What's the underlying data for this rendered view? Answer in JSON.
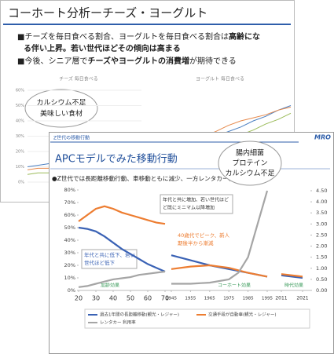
{
  "back_slide": {
    "title": "コーホート分析ーチーズ・ヨーグルト",
    "bullets": [
      [
        {
          "text": "■チーズを毎日食べる割合、ヨーグルトを毎日食べる割合は",
          "bold": false
        },
        {
          "text": "高齢にな",
          "bold": true
        }
      ],
      [
        {
          "text": "る伴い上昇。若い世代ほどその傾向は高まる",
          "bold": true
        }
      ],
      [
        {
          "text": "■今後、シニア層で",
          "bold": false
        },
        {
          "text": "チーズやヨーグルトの消費増",
          "bold": true
        },
        {
          "text": "が期待できる",
          "bold": false
        }
      ]
    ],
    "charts": [
      {
        "title": "チーズ 毎日食べる",
        "ylim": [
          0,
          60
        ],
        "yticks": [
          {
            "value": 60,
            "label": "60%"
          },
          {
            "value": 50,
            "label": "50%"
          },
          {
            "value": 40,
            "label": "40%"
          },
          {
            "value": 30,
            "label": "30%"
          },
          {
            "value": 20,
            "label": "20%"
          },
          {
            "value": 10,
            "label": "10%"
          },
          {
            "value": 0,
            "label": "0%"
          }
        ],
        "series": [
          {
            "color": "#4a7fc1",
            "values": [
              10,
              11,
              12,
              13,
              14,
              15,
              17,
              19,
              21,
              23,
              25,
              28
            ]
          },
          {
            "color": "#e6884a",
            "values": [
              8,
              9,
              9,
              10,
              11,
              12,
              13,
              14,
              16,
              17,
              19,
              21
            ]
          },
          {
            "color": "#9bbb59",
            "values": [
              5,
              6,
              6,
              7,
              8,
              8,
              9,
              10,
              11,
              12,
              13,
              14
            ]
          }
        ]
      },
      {
        "title": "ヨーグルト 毎日食べる",
        "ylim": [
          0,
          60
        ],
        "series": [
          {
            "color": "#4a7fc1",
            "values": [
              15,
              18,
              20,
              24,
              27,
              30,
              33,
              36,
              40,
              43,
              47,
              50
            ]
          },
          {
            "color": "#9bbb59",
            "values": [
              12,
              14,
              17,
              19,
              22,
              25,
              28,
              31,
              34,
              38,
              41,
              45
            ]
          },
          {
            "color": "#e6884a",
            "values": [
              20,
              22,
              24,
              27,
              30,
              33,
              37,
              40,
              42,
              44,
              47,
              49
            ]
          }
        ]
      }
    ],
    "callouts": [
      [
        "カルシウム不足",
        "美味しい食材"
      ],
      [
        "腸内細菌",
        "プロテイン",
        "カルシウム不足"
      ]
    ]
  },
  "front_slide": {
    "header": "Z世代の移動行動",
    "logo": "MRO",
    "title": "APCモデルでみた移動行動",
    "bullet": "●Z世代では長距離移動行動、車移動ともに減少、一方レンタカー利用は急増",
    "chart_data": {
      "type": "line",
      "ylim": [
        0,
        80
      ],
      "yticks": [
        {
          "value": 80,
          "label": "80%"
        },
        {
          "value": 70,
          "label": "70%"
        },
        {
          "value": 60,
          "label": "60%"
        },
        {
          "value": 50,
          "label": "50%"
        },
        {
          "value": 40,
          "label": "40%"
        },
        {
          "value": 30,
          "label": "30%"
        },
        {
          "value": 20,
          "label": "20%"
        },
        {
          "value": 10,
          "label": "10%"
        },
        {
          "value": 0,
          "label": "0%"
        }
      ],
      "y2lim": [
        0,
        4.5
      ],
      "y2ticks": [
        {
          "value": 4.5,
          "label": "4.50"
        },
        {
          "value": 4,
          "label": "4.00"
        },
        {
          "value": 3.5,
          "label": "3.50"
        },
        {
          "value": 3,
          "label": "3.00"
        },
        {
          "value": 2.5,
          "label": "2.50"
        },
        {
          "value": 2,
          "label": "2.00"
        },
        {
          "value": 1.5,
          "label": "1.50"
        },
        {
          "value": 1,
          "label": "1.00"
        },
        {
          "value": 0.5,
          "label": "0.50"
        },
        {
          "value": 0,
          "label": "0.00"
        }
      ],
      "panels": [
        {
          "xlim": [
            20,
            70
          ],
          "xticks": [
            20,
            30,
            40,
            50,
            60,
            70
          ],
          "series": [
            {
              "color": "#3a62b5",
              "x": [
                20,
                25,
                30,
                35,
                40,
                45,
                50,
                55,
                60,
                65,
                70
              ],
              "values": [
                50,
                49,
                47,
                43,
                38,
                33,
                29,
                25,
                21,
                18,
                15
              ]
            },
            {
              "color": "#ed7d31",
              "x": [
                20,
                25,
                30,
                35,
                40,
                45,
                50,
                55,
                60,
                65,
                70
              ],
              "values": [
                55,
                60,
                65,
                67,
                65,
                62,
                60,
                58,
                56,
                54,
                53
              ]
            },
            {
              "color": "#a5a5a5",
              "axis": "y2",
              "x": [
                20,
                25,
                30,
                35,
                40,
                45,
                50,
                55,
                60,
                65,
                70
              ],
              "values": [
                0.15,
                0.2,
                0.3,
                0.4,
                0.5,
                0.55,
                0.6,
                0.7,
                0.75,
                0.8,
                0.85
              ]
            }
          ]
        },
        {
          "xlim": [
            1945,
            1995
          ],
          "xticks": [
            1945,
            1955,
            1965,
            1975,
            1985,
            1995
          ],
          "series": [
            {
              "color": "#3a62b5",
              "x": [
                1945,
                1955,
                1965,
                1975,
                1985,
                1995
              ],
              "values": [
                28,
                24,
                20,
                17,
                14,
                11
              ]
            },
            {
              "color": "#ed7d31",
              "x": [
                1945,
                1955,
                1965,
                1975,
                1985,
                1995
              ],
              "values": [
                17,
                19,
                20,
                18,
                14,
                11
              ]
            },
            {
              "color": "#a5a5a5",
              "axis": "y2",
              "x": [
                1945,
                1955,
                1965,
                1975,
                1980,
                1985,
                1990,
                1995
              ],
              "values": [
                0.3,
                0.3,
                0.35,
                0.5,
                0.8,
                1.5,
                3,
                4.5
              ]
            }
          ]
        },
        {
          "xlim": [
            2011,
            2021
          ],
          "xticks": [
            2011,
            2021
          ],
          "series": [
            {
              "color": "#3a62b5",
              "x": [
                2011,
                2021
              ],
              "values": [
                12,
                10
              ]
            },
            {
              "color": "#ed7d31",
              "x": [
                2011,
                2021
              ],
              "values": [
                13,
                11
              ]
            }
          ]
        }
      ],
      "annotations": [
        [
          "年代と共に増加、若い世代ほど",
          "ど既にミニマム以降増加"
        ],
        [
          "40歳代でピーク、新人",
          "期後半から漸減"
        ],
        [
          "年代と共に低下、若い",
          "世代ほど低下"
        ]
      ],
      "effects": [
        "加齢効果",
        "コーホート効果",
        "時代効果"
      ],
      "legend": [
        {
          "name": "過去1年間の長距離移動(観光・レジャー)",
          "color": "#3a62b5"
        },
        {
          "name": "交通手段が自動車(観光・レジャー)",
          "color": "#ed7d31"
        },
        {
          "name": "レンタカー 利用率",
          "color": "#a5a5a5"
        }
      ]
    }
  }
}
